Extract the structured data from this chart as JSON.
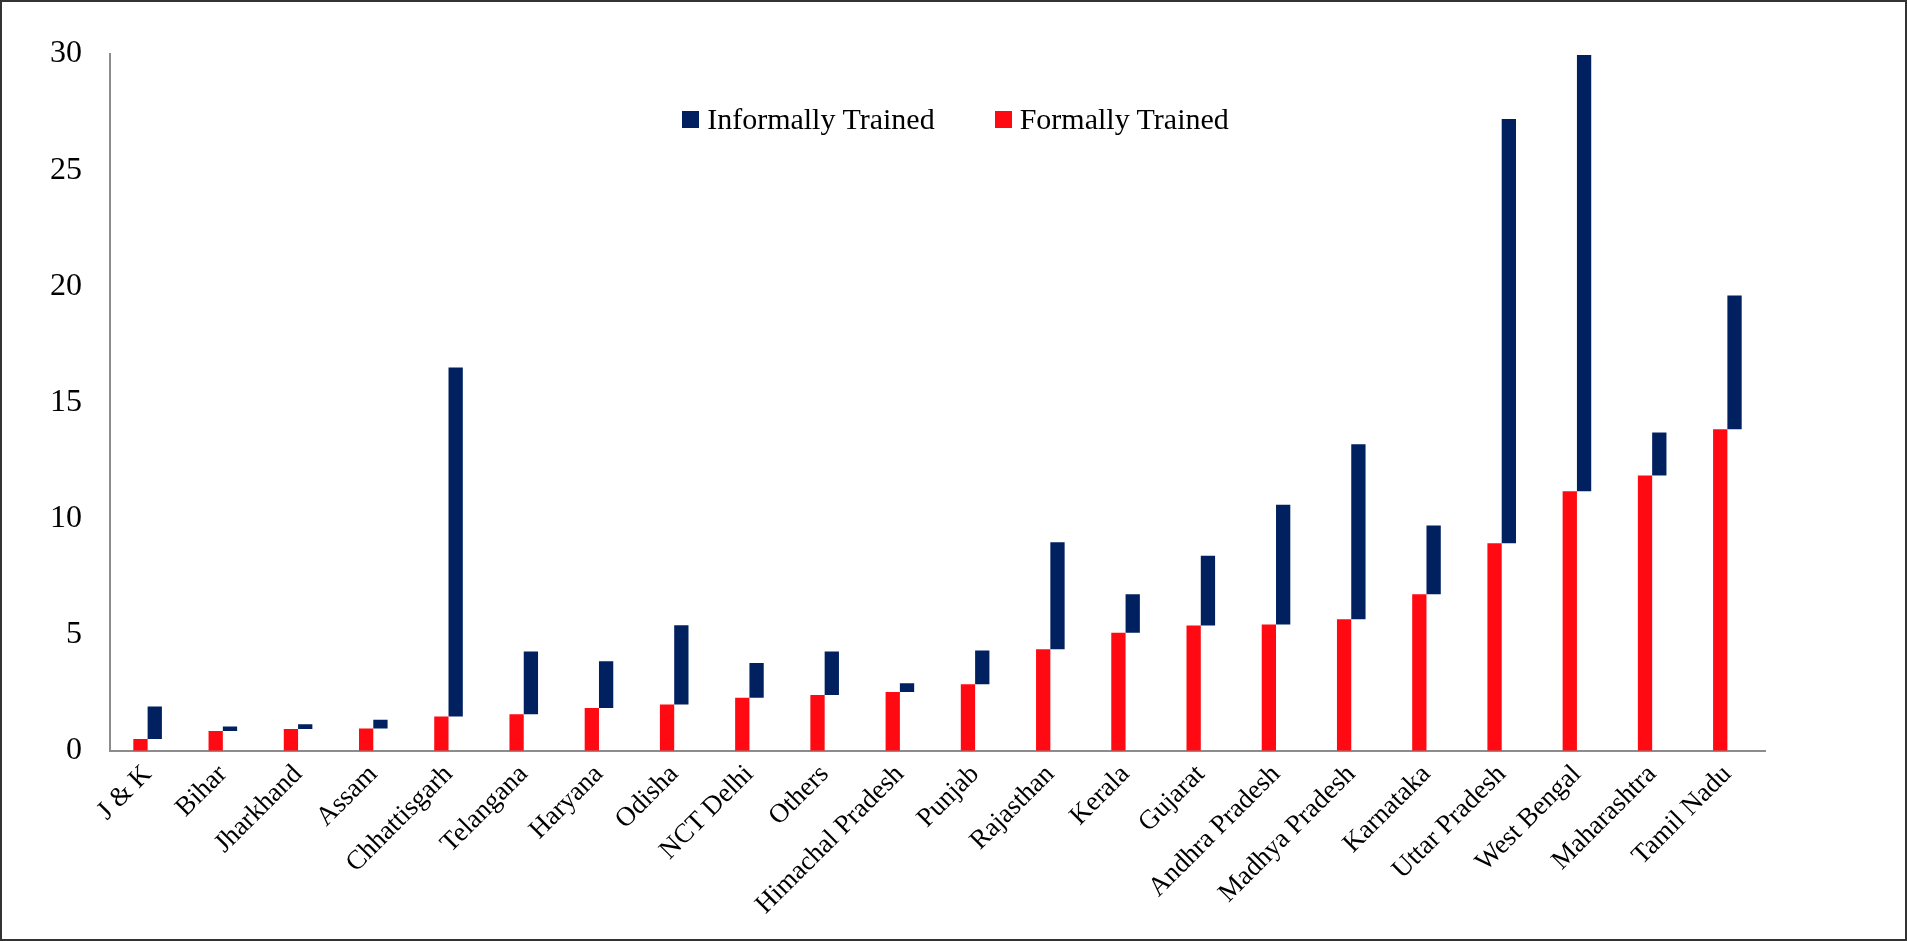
{
  "chart_data": {
    "type": "bar",
    "categories": [
      "J & K",
      "Bihar",
      "Jharkhand",
      "Assam",
      "Chhattisgarh",
      "Telangana",
      "Haryana",
      "Odisha",
      "NCT Delhi",
      "Others",
      "Himachal Pradesh",
      "Punjab",
      "Rajasthan",
      "Kerala",
      "Gujarat",
      "Andhra Pradesh",
      "Madhya Pradesh",
      "Karnataka",
      "Uttar Pradesh",
      "West Bengal",
      "Maharashtra",
      "Tamil Nadu"
    ],
    "series": [
      {
        "name": "Formally Trained",
        "color": "#ff0a12",
        "values": [
          0.5,
          0.85,
          0.93,
          0.95,
          1.47,
          1.57,
          1.84,
          1.99,
          2.28,
          2.4,
          2.53,
          2.86,
          4.37,
          5.08,
          5.39,
          5.43,
          5.66,
          6.73,
          8.93,
          11.17,
          11.85,
          13.84
        ]
      },
      {
        "name": "Informally Trained",
        "color": "#002060",
        "base": [
          0.5,
          0.85,
          0.93,
          0.95,
          1.47,
          1.57,
          1.84,
          1.99,
          2.28,
          2.4,
          2.53,
          2.86,
          4.37,
          5.08,
          5.39,
          5.43,
          5.66,
          6.73,
          8.93,
          11.17,
          11.85,
          13.84
        ],
        "values": [
          1.4,
          0.19,
          0.21,
          0.38,
          15.03,
          2.7,
          2.01,
          3.41,
          1.49,
          1.87,
          0.37,
          1.45,
          4.6,
          1.65,
          3.0,
          5.16,
          7.54,
          2.97,
          18.27,
          18.79,
          1.85,
          5.76
        ]
      }
    ],
    "ylim": [
      0,
      30
    ],
    "yticks": [
      0,
      5,
      10,
      15,
      20,
      25,
      30
    ],
    "grid": false,
    "legend": "top"
  }
}
